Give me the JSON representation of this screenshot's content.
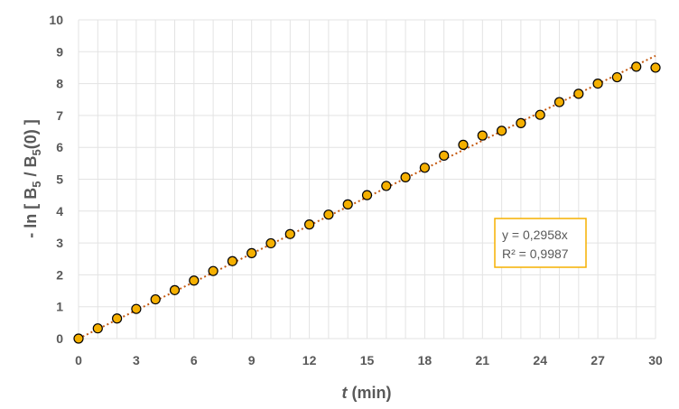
{
  "chart_data": {
    "type": "scatter",
    "title": "",
    "xlabel": {
      "italic": "t",
      "rest": " (min)"
    },
    "ylabel": {
      "p1": "- ln [ B",
      "sub1": "5",
      "p2": " / B",
      "sub2": "5",
      "p3": "(0) ]"
    },
    "xlim": [
      0,
      30
    ],
    "ylim": [
      0,
      10
    ],
    "xticks": [
      0,
      3,
      6,
      9,
      12,
      15,
      18,
      21,
      24,
      27,
      30
    ],
    "yticks": [
      0,
      1,
      2,
      3,
      4,
      5,
      6,
      7,
      8,
      9,
      10
    ],
    "grid": true,
    "series": [
      {
        "marker_color": "#f5b000",
        "x": [
          0,
          1,
          2,
          3,
          4,
          5,
          6,
          7,
          8,
          9,
          10,
          11,
          12,
          13,
          14,
          15,
          16,
          17,
          18,
          19,
          20,
          21,
          22,
          23,
          24,
          25,
          26,
          27,
          28,
          29,
          30
        ],
        "y": [
          0.0,
          0.32,
          0.63,
          0.93,
          1.23,
          1.52,
          1.82,
          2.12,
          2.43,
          2.68,
          2.99,
          3.28,
          3.58,
          3.89,
          4.21,
          4.5,
          4.79,
          5.06,
          5.36,
          5.74,
          6.08,
          6.37,
          6.52,
          6.76,
          7.02,
          7.42,
          7.68,
          8.0,
          8.2,
          8.53,
          8.5
        ]
      }
    ],
    "trendline": {
      "slope": 0.2958,
      "color": "#c55a11",
      "equation": "y = 0,2958x",
      "r2": "R² = 0,9987",
      "box_border_color": "#f5b000"
    }
  }
}
